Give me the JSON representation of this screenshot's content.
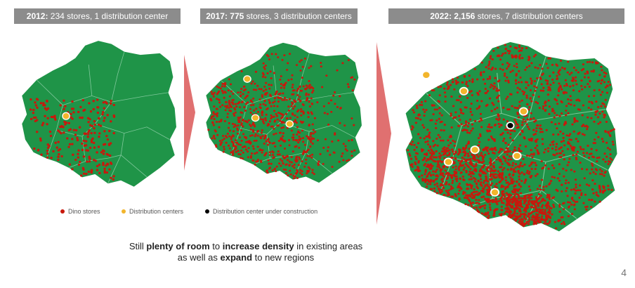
{
  "colors": {
    "land": "#1f9448",
    "border": "#7fc79a",
    "store": "#c8180c",
    "dc": "#f2b52c",
    "dc_construction": "#000000",
    "header_bg": "#8c8c8c",
    "arrow": "#e07070"
  },
  "panels": [
    {
      "year": "2012:",
      "rest": " 234 stores, 1 distribution center",
      "stores": 234,
      "dcs": 1
    },
    {
      "year": "2017:",
      "count": "775",
      "rest": " stores, 3 distribution centers",
      "stores": 775,
      "dcs": 3
    },
    {
      "year": "2022:",
      "count": "2,156",
      "rest": " stores, 7 distribution centers",
      "stores": 2156,
      "dcs": 7
    }
  ],
  "legend": {
    "stores": "Dino stores",
    "dc": "Distribution centers",
    "construction": "Distribution center under construction"
  },
  "caption": {
    "l1_a": "Still ",
    "l1_b": "plenty of room",
    "l1_c": " to ",
    "l1_d": "increase density",
    "l1_e": " in existing areas",
    "l2_a": "as well as ",
    "l2_b": "expand",
    "l2_c": " to new regions"
  },
  "page_number": "4"
}
